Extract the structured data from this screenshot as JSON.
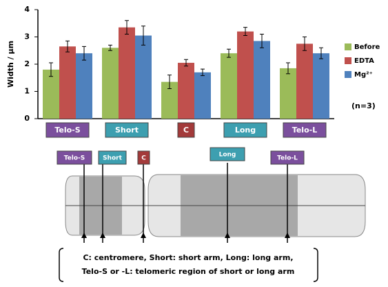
{
  "chart_data": {
    "type": "bar",
    "y_label": "Width / μm",
    "categories": [
      "Telo-S",
      "Short",
      "C",
      "Long",
      "Telo-L"
    ],
    "label_colors": [
      "#7b4f9d",
      "#3d9fb0",
      "#a33a3a",
      "#3d9fb0",
      "#7b4f9d"
    ],
    "series": [
      {
        "name": "Before",
        "color": "#9bbb59",
        "values": [
          1.8,
          2.6,
          1.35,
          2.4,
          1.85
        ],
        "errors": [
          0.25,
          0.1,
          0.25,
          0.15,
          0.2
        ]
      },
      {
        "name": "EDTA",
        "color": "#c0504d",
        "values": [
          2.65,
          3.35,
          2.05,
          3.2,
          2.75
        ],
        "errors": [
          0.2,
          0.25,
          0.12,
          0.15,
          0.25
        ]
      },
      {
        "name": "Mg²⁺",
        "color": "#4f81bd",
        "values": [
          2.4,
          3.05,
          1.7,
          2.85,
          2.4
        ],
        "errors": [
          0.25,
          0.35,
          0.12,
          0.25,
          0.2
        ]
      }
    ],
    "ylim": [
      0,
      4
    ],
    "yticks": [
      0,
      1,
      2,
      3,
      4
    ],
    "annotation": "(n=3)"
  },
  "diagram": {
    "labels": [
      "Telo-S",
      "Short",
      "C",
      "Long",
      "Telo-L"
    ],
    "caption": [
      "C: centromere, Short: short arm, Long: long arm,",
      "Telo-S or -L: telomeric region of short or long arm"
    ]
  }
}
